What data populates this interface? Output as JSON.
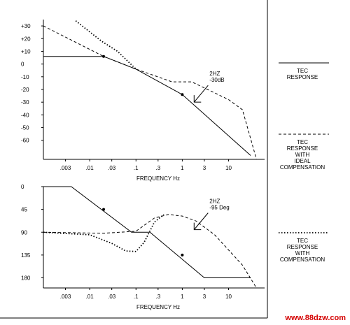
{
  "watermark": "www.88dzw.com",
  "legend": [
    {
      "style": "solid",
      "lines": [
        "TEC",
        "RESPONSE"
      ]
    },
    {
      "style": "dashed",
      "lines": [
        "TEC",
        "RESPONSE",
        "WITH",
        "IDEAL",
        "COMPENSATION"
      ]
    },
    {
      "style": "dotted",
      "lines": [
        "TEC",
        "RESPONSE",
        "WITH",
        "COMPENSATION"
      ]
    }
  ],
  "chart_data": [
    {
      "type": "line",
      "panel": "magnitude",
      "xlabel": "FREQUENCY Hz",
      "ylabel": "",
      "x_scale": "log",
      "xlim": [
        0.001,
        60
      ],
      "ylim": [
        -75,
        35
      ],
      "x_ticks": [
        0.003,
        0.01,
        0.03,
        0.1,
        0.3,
        1,
        3,
        10
      ],
      "x_tick_labels": [
        ".003",
        ".01",
        ".03",
        ".1",
        ".3",
        "1",
        "3",
        "10"
      ],
      "y_ticks": [
        30,
        20,
        10,
        0,
        -10,
        -20,
        -30,
        -40,
        -50,
        -60
      ],
      "y_tick_labels": [
        "+30",
        "+20",
        "+10",
        "0",
        "-10",
        "-20",
        "-30",
        "-40",
        "-50",
        "-60"
      ],
      "annotation": {
        "lines": [
          "2HZ",
          "-30dB"
        ],
        "x": 1.8,
        "y": -30
      },
      "series": [
        {
          "style": "solid",
          "markers": [
            [
              0.02,
              6
            ],
            [
              1,
              -24
            ]
          ],
          "x": [
            0.001,
            0.02,
            0.1,
            1,
            30
          ],
          "y": [
            6,
            6,
            -4,
            -24,
            -72
          ]
        },
        {
          "style": "dashed",
          "x": [
            0.001,
            0.02,
            0.1,
            0.6,
            1.6,
            10,
            20,
            40
          ],
          "y": [
            30,
            6,
            -4,
            -14,
            -14,
            -28,
            -36,
            -75
          ]
        },
        {
          "style": "dotted",
          "x": [
            0.005,
            0.018,
            0.04,
            0.1
          ],
          "y": [
            34,
            18,
            10,
            -4
          ]
        }
      ]
    },
    {
      "type": "line",
      "panel": "phase",
      "xlabel": "FREQUENCY Hz",
      "ylabel": "",
      "x_scale": "log",
      "xlim": [
        0.001,
        60
      ],
      "ylim": [
        0,
        200
      ],
      "y_inverted": true,
      "x_ticks": [
        0.003,
        0.01,
        0.03,
        0.1,
        0.3,
        1,
        3,
        10
      ],
      "x_tick_labels": [
        ".003",
        ".01",
        ".03",
        ".1",
        ".3",
        "1",
        "3",
        "10"
      ],
      "y_ticks": [
        0,
        45,
        90,
        135,
        180
      ],
      "y_tick_labels": [
        "0",
        "45",
        "90",
        "135",
        "180"
      ],
      "annotation": {
        "lines": [
          "2HZ",
          "-95 Deg"
        ],
        "x": 1.8,
        "y": 85
      },
      "series": [
        {
          "style": "solid",
          "markers": [
            [
              0.02,
              45
            ],
            [
              1,
              135
            ]
          ],
          "x": [
            0.001,
            0.004,
            0.08,
            0.2,
            3,
            30
          ],
          "y": [
            0,
            0,
            90,
            90,
            180,
            180
          ]
        },
        {
          "style": "dashed",
          "x": [
            0.001,
            0.02,
            0.1,
            0.25,
            0.5,
            1,
            2,
            5,
            10,
            20,
            40
          ],
          "y": [
            90,
            92,
            88,
            62,
            55,
            58,
            68,
            95,
            125,
            155,
            200
          ]
        },
        {
          "style": "dotted",
          "x": [
            0.001,
            0.01,
            0.03,
            0.06,
            0.1,
            0.15,
            0.25,
            0.4
          ],
          "y": [
            90,
            95,
            112,
            127,
            128,
            110,
            70,
            55
          ]
        }
      ]
    }
  ]
}
